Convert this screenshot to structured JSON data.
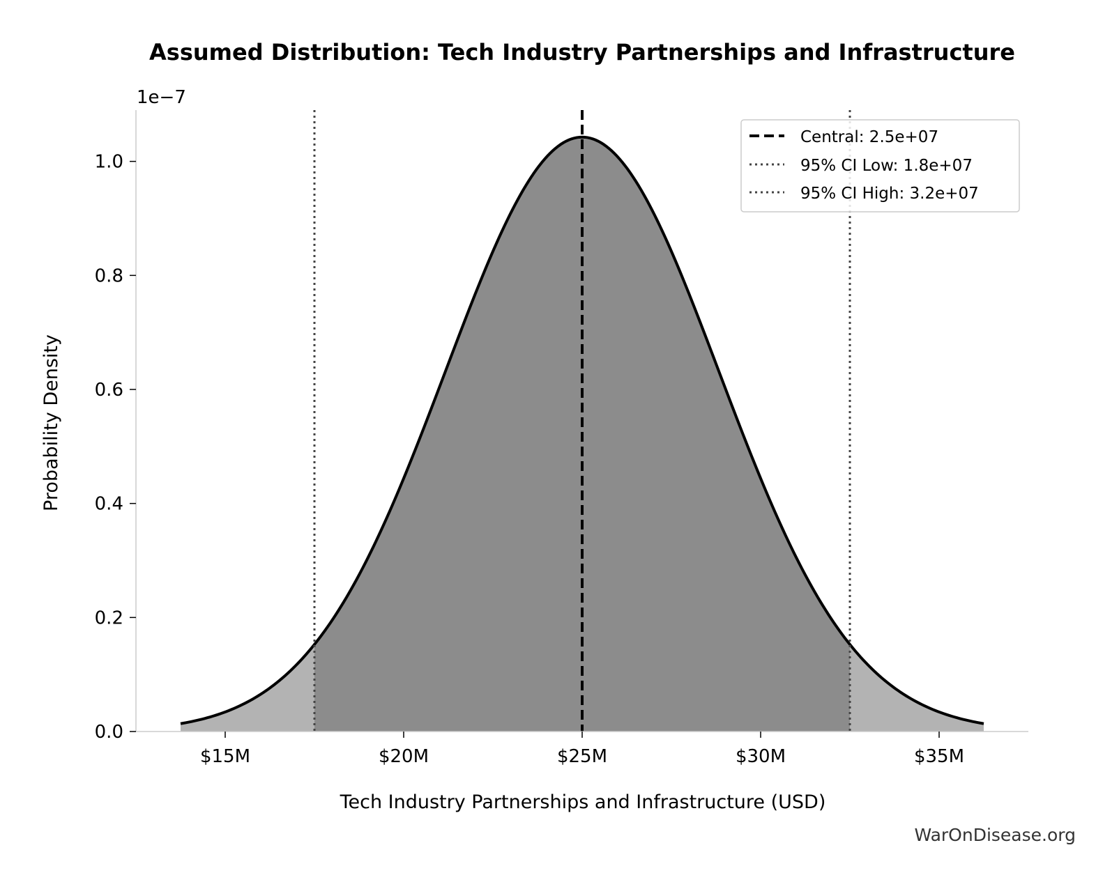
{
  "chart_data": {
    "type": "area",
    "title": "Assumed Distribution: Tech Industry Partnerships and Infrastructure",
    "xlabel": "Tech Industry Partnerships and Infrastructure (USD)",
    "ylabel": "Probability Density",
    "y_scale_label": "1e−7",
    "xlim": [
      12500000,
      37500000
    ],
    "ylim": [
      0,
      1.09
    ],
    "x_ticks": [
      15000000,
      20000000,
      25000000,
      30000000,
      35000000
    ],
    "x_tick_labels": [
      "$15M",
      "$20M",
      "$25M",
      "$30M",
      "$35M"
    ],
    "y_ticks": [
      0.0,
      0.2,
      0.4,
      0.6,
      0.8,
      1.0
    ],
    "y_tick_labels": [
      "0.0",
      "0.2",
      "0.4",
      "0.6",
      "0.8",
      "1.0"
    ],
    "distribution": {
      "shape": "normal",
      "mean": 25000000,
      "std": 3826530,
      "x_min": 13750000,
      "x_max": 36250000,
      "peak_density": 1.0426
    },
    "markers": [
      {
        "name": "Central: 2.5e+07",
        "x": 25000000,
        "style": "dashed",
        "color": "#000000"
      },
      {
        "name": "95% CI Low: 1.8e+07",
        "x": 17500000,
        "style": "dotted",
        "color": "#444444"
      },
      {
        "name": "95% CI High: 3.2e+07",
        "x": 32500000,
        "style": "dotted",
        "color": "#444444"
      }
    ],
    "colors": {
      "curve": "#000000",
      "ci_fill": "#8c8c8c",
      "tail_fill": "#b3b3b3"
    },
    "grid": false,
    "legend_position": "top-right"
  },
  "credit": "WarOnDisease.org"
}
